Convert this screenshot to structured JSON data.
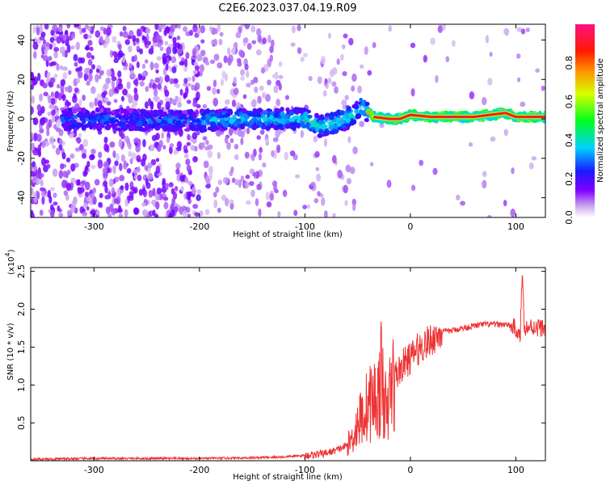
{
  "title": "C2E6.2023.037.04.19.R09",
  "chart_data": [
    {
      "type": "heatmap",
      "xlabel": "Height of straight line (km)",
      "ylabel": "Frequency (Hz)",
      "xlim": [
        -360,
        128
      ],
      "ylim": [
        -50,
        48
      ],
      "x_ticks": [
        "-300",
        "-200",
        "-100",
        "0",
        "100"
      ],
      "y_ticks": [
        "-40",
        "-20",
        "0",
        "20",
        "40"
      ],
      "colorbar": {
        "label": "Normalized spectral amplitude",
        "range": [
          0,
          1
        ],
        "ticks": [
          "0.0",
          "0.2",
          "0.4",
          "0.6",
          "0.8"
        ],
        "colormap": "rainbow (white-purple-blue-cyan-green-yellow-red-magenta)"
      },
      "ridge": [
        {
          "x": -320,
          "y": 0
        },
        {
          "x": -300,
          "y": 0
        },
        {
          "x": -250,
          "y": -1
        },
        {
          "x": -200,
          "y": -1
        },
        {
          "x": -150,
          "y": 0
        },
        {
          "x": -100,
          "y": 0
        },
        {
          "x": -85,
          "y": -4
        },
        {
          "x": -60,
          "y": 0
        },
        {
          "x": -45,
          "y": 6
        },
        {
          "x": -35,
          "y": 1
        },
        {
          "x": -20,
          "y": 0
        },
        {
          "x": -10,
          "y": 0
        },
        {
          "x": 0,
          "y": 2
        },
        {
          "x": 20,
          "y": 1
        },
        {
          "x": 60,
          "y": 1
        },
        {
          "x": 90,
          "y": 3
        },
        {
          "x": 100,
          "y": 1
        },
        {
          "x": 128,
          "y": 1
        }
      ]
    },
    {
      "type": "line",
      "xlabel": "Height of straight line (km)",
      "ylabel": "SNR (10 * v/v)",
      "y_scale_label": "(x10",
      "y_scale_exp": "4",
      "y_scale_close": ")",
      "xlim": [
        -360,
        128
      ],
      "ylim": [
        0,
        2.55
      ],
      "x_ticks": [
        "-300",
        "-200",
        "-100",
        "0",
        "100"
      ],
      "y_ticks": [
        "0.5",
        "1.0",
        "1.5",
        "2.0",
        "2.5"
      ],
      "color": "#ee3333",
      "x": [
        -360,
        -300,
        -200,
        -150,
        -120,
        -100,
        -90,
        -80,
        -70,
        -60,
        -55,
        -50,
        -45,
        -40,
        -35,
        -30,
        -28,
        -25,
        -22,
        -20,
        -15,
        -10,
        -5,
        0,
        5,
        10,
        15,
        20,
        25,
        30,
        40,
        50,
        60,
        70,
        80,
        90,
        95,
        100,
        104,
        106,
        108,
        110,
        115,
        120,
        128
      ],
      "y": [
        0.02,
        0.03,
        0.03,
        0.04,
        0.05,
        0.07,
        0.08,
        0.1,
        0.14,
        0.2,
        0.3,
        0.5,
        0.6,
        0.75,
        0.8,
        0.85,
        1.1,
        0.9,
        0.5,
        0.9,
        1.1,
        1.2,
        1.3,
        1.35,
        1.45,
        1.5,
        1.55,
        1.6,
        1.65,
        1.7,
        1.72,
        1.75,
        1.78,
        1.8,
        1.8,
        1.8,
        1.78,
        1.75,
        1.6,
        2.5,
        1.8,
        1.75,
        1.77,
        1.76,
        1.75
      ]
    }
  ]
}
